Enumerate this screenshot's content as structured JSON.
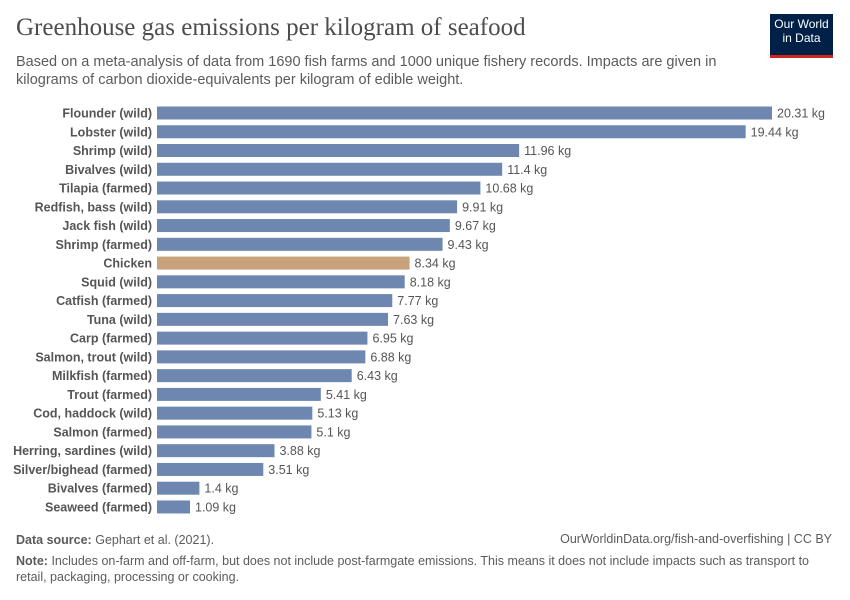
{
  "header": {
    "title": "Greenhouse gas emissions per kilogram of seafood",
    "subtitle": "Based on a meta-analysis of data from 1690 fish farms and 1000 unique fishery records. Impacts are given in kilograms of carbon dioxide-equivalents per kilogram of edible weight.",
    "logo": "Our World in Data"
  },
  "chart_data": {
    "type": "bar",
    "orientation": "horizontal",
    "unit": "kg",
    "categories": [
      "Flounder (wild)",
      "Lobster (wild)",
      "Shrimp (wild)",
      "Bivalves (wild)",
      "Tilapia (farmed)",
      "Redfish, bass (wild)",
      "Jack fish (wild)",
      "Shrimp (farmed)",
      "Chicken",
      "Squid (wild)",
      "Catfish (farmed)",
      "Tuna (wild)",
      "Carp (farmed)",
      "Salmon, trout (wild)",
      "Milkfish (farmed)",
      "Trout (farmed)",
      "Cod, haddock (wild)",
      "Salmon (farmed)",
      "Herring, sardines (wild)",
      "Silver/bighead (farmed)",
      "Bivalves (farmed)",
      "Seaweed (farmed)"
    ],
    "values": [
      20.31,
      19.44,
      11.96,
      11.4,
      10.68,
      9.91,
      9.67,
      9.43,
      8.34,
      8.18,
      7.77,
      7.63,
      6.95,
      6.88,
      6.43,
      5.41,
      5.13,
      5.1,
      3.88,
      3.51,
      1.4,
      1.09
    ],
    "data_labels": [
      "20.31 kg",
      "19.44 kg",
      "11.96 kg",
      "11.4 kg",
      "10.68 kg",
      "9.91 kg",
      "9.67 kg",
      "9.43 kg",
      "8.34 kg",
      "8.18 kg",
      "7.77 kg",
      "7.63 kg",
      "6.95 kg",
      "6.88 kg",
      "6.43 kg",
      "5.41 kg",
      "5.13 kg",
      "5.1 kg",
      "3.88 kg",
      "3.51 kg",
      "1.4 kg",
      "1.09 kg"
    ],
    "highlight": "Chicken",
    "colors": {
      "default": "#6d87b0",
      "highlight": "#c8a27a"
    },
    "xlim": [
      0,
      20.31
    ],
    "grid": false
  },
  "footer": {
    "source_label": "Data source:",
    "source": "Gephart et al. (2021).",
    "url": "OurWorldinData.org/fish-and-overfishing | CC BY",
    "note_label": "Note:",
    "note": "Includes on-farm and off-farm, but does not include post-farmgate emissions. This means it does not include impacts such as transport to retail, packaging, processing or cooking."
  }
}
